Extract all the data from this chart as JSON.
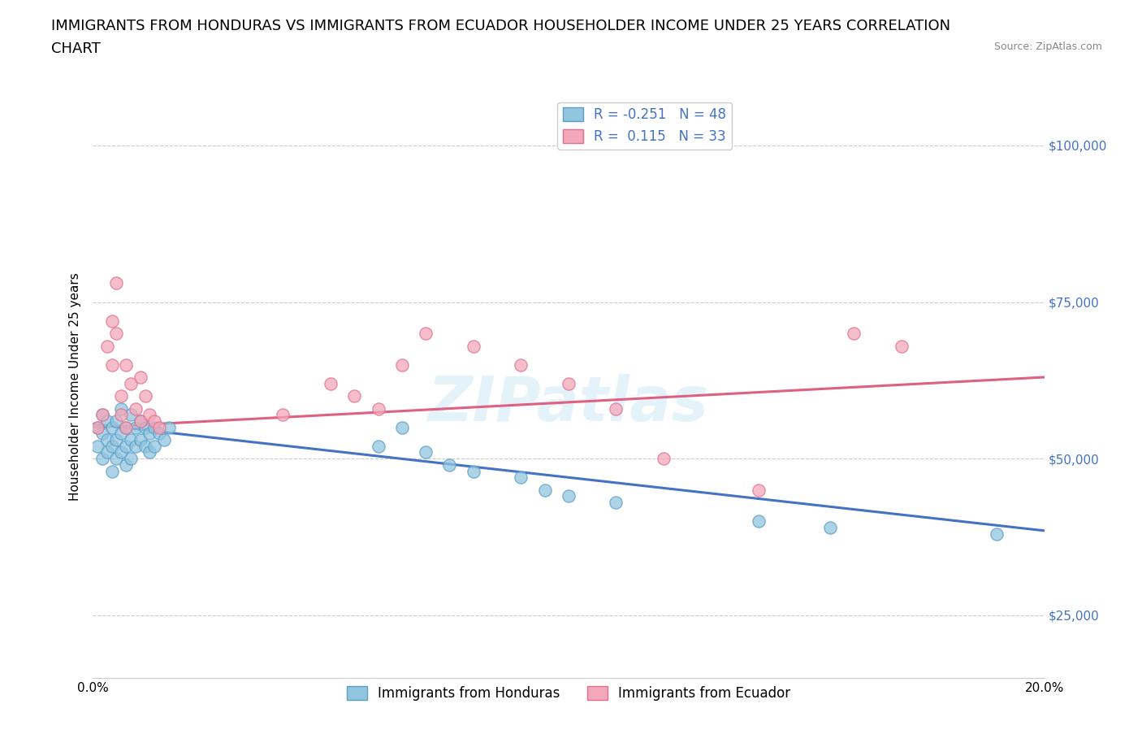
{
  "title_line1": "IMMIGRANTS FROM HONDURAS VS IMMIGRANTS FROM ECUADOR HOUSEHOLDER INCOME UNDER 25 YEARS CORRELATION",
  "title_line2": "CHART",
  "source_text": "Source: ZipAtlas.com",
  "ylabel": "Householder Income Under 25 years",
  "xlim": [
    0.0,
    0.2
  ],
  "ylim": [
    15000,
    108000
  ],
  "yticks": [
    25000,
    50000,
    75000,
    100000
  ],
  "ytick_labels": [
    "$25,000",
    "$50,000",
    "$75,000",
    "$100,000"
  ],
  "xticks": [
    0.0,
    0.05,
    0.1,
    0.15,
    0.2
  ],
  "xtick_labels": [
    "0.0%",
    "",
    "",
    "",
    "20.0%"
  ],
  "legend_labels": [
    "Immigrants from Honduras",
    "Immigrants from Ecuador"
  ],
  "R_honduras": -0.251,
  "N_honduras": 48,
  "R_ecuador": 0.115,
  "N_ecuador": 33,
  "color_honduras": "#92C5DE",
  "color_ecuador": "#F4A7B9",
  "edge_color_honduras": "#5B9EC9",
  "edge_color_ecuador": "#E07090",
  "line_color_honduras": "#4472C4",
  "line_color_ecuador": "#E06080",
  "watermark": "ZIPatlas",
  "title_fontsize": 13,
  "axis_label_fontsize": 11,
  "tick_fontsize": 11,
  "legend_fontsize": 12,
  "honduras_x": [
    0.001,
    0.001,
    0.002,
    0.002,
    0.002,
    0.003,
    0.003,
    0.003,
    0.004,
    0.004,
    0.004,
    0.005,
    0.005,
    0.005,
    0.006,
    0.006,
    0.006,
    0.007,
    0.007,
    0.007,
    0.008,
    0.008,
    0.008,
    0.009,
    0.009,
    0.01,
    0.01,
    0.011,
    0.011,
    0.012,
    0.012,
    0.013,
    0.013,
    0.014,
    0.015,
    0.016,
    0.06,
    0.065,
    0.07,
    0.075,
    0.08,
    0.09,
    0.095,
    0.1,
    0.11,
    0.14,
    0.155,
    0.19
  ],
  "honduras_y": [
    55000,
    52000,
    54000,
    57000,
    50000,
    53000,
    56000,
    51000,
    55000,
    52000,
    48000,
    56000,
    53000,
    50000,
    58000,
    54000,
    51000,
    55000,
    52000,
    49000,
    57000,
    53000,
    50000,
    55000,
    52000,
    56000,
    53000,
    55000,
    52000,
    54000,
    51000,
    55000,
    52000,
    54000,
    53000,
    55000,
    52000,
    55000,
    51000,
    49000,
    48000,
    47000,
    45000,
    44000,
    43000,
    40000,
    39000,
    38000
  ],
  "ecuador_x": [
    0.001,
    0.002,
    0.003,
    0.004,
    0.004,
    0.005,
    0.005,
    0.006,
    0.006,
    0.007,
    0.007,
    0.008,
    0.009,
    0.01,
    0.01,
    0.011,
    0.012,
    0.013,
    0.014,
    0.04,
    0.05,
    0.055,
    0.06,
    0.065,
    0.07,
    0.08,
    0.09,
    0.1,
    0.11,
    0.12,
    0.14,
    0.16,
    0.17
  ],
  "ecuador_y": [
    55000,
    57000,
    68000,
    72000,
    65000,
    78000,
    70000,
    60000,
    57000,
    65000,
    55000,
    62000,
    58000,
    56000,
    63000,
    60000,
    57000,
    56000,
    55000,
    57000,
    62000,
    60000,
    58000,
    65000,
    70000,
    68000,
    65000,
    62000,
    58000,
    50000,
    45000,
    70000,
    68000
  ]
}
